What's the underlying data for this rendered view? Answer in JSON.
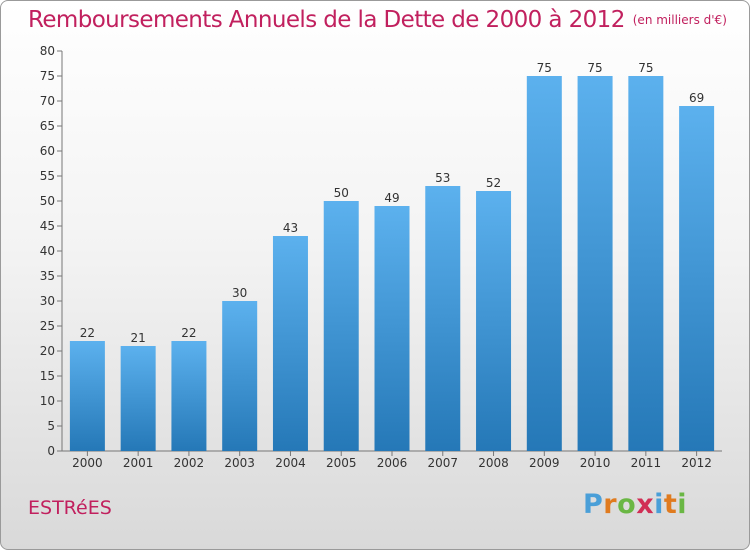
{
  "header": {
    "title": "Remboursements Annuels de la Dette de 2000 à 2012",
    "units": "(en milliers d'€)"
  },
  "city": "ESTRéES",
  "brand": {
    "letters": [
      "P",
      "r",
      "o",
      "x",
      "i",
      "t",
      "i"
    ],
    "colors": [
      "#4a9fd8",
      "#e07b1f",
      "#6ab744",
      "#d12f55",
      "#4a9fd8",
      "#e07b1f",
      "#6ab744"
    ]
  },
  "colors": {
    "bar_top": "#5cb1ee",
    "bar_bottom": "#2578b7",
    "title": "#c1205e"
  },
  "chart_data": {
    "type": "bar",
    "categories": [
      "2000",
      "2001",
      "2002",
      "2003",
      "2004",
      "2005",
      "2006",
      "2007",
      "2008",
      "2009",
      "2010",
      "2011",
      "2012"
    ],
    "values": [
      22,
      21,
      22,
      30,
      43,
      50,
      49,
      53,
      52,
      75,
      75,
      75,
      69
    ],
    "ylim": [
      0,
      80
    ],
    "yticks": [
      0,
      5,
      10,
      15,
      20,
      25,
      30,
      35,
      40,
      45,
      50,
      55,
      60,
      65,
      70,
      75,
      80
    ],
    "grid": false,
    "data_labels": true
  }
}
